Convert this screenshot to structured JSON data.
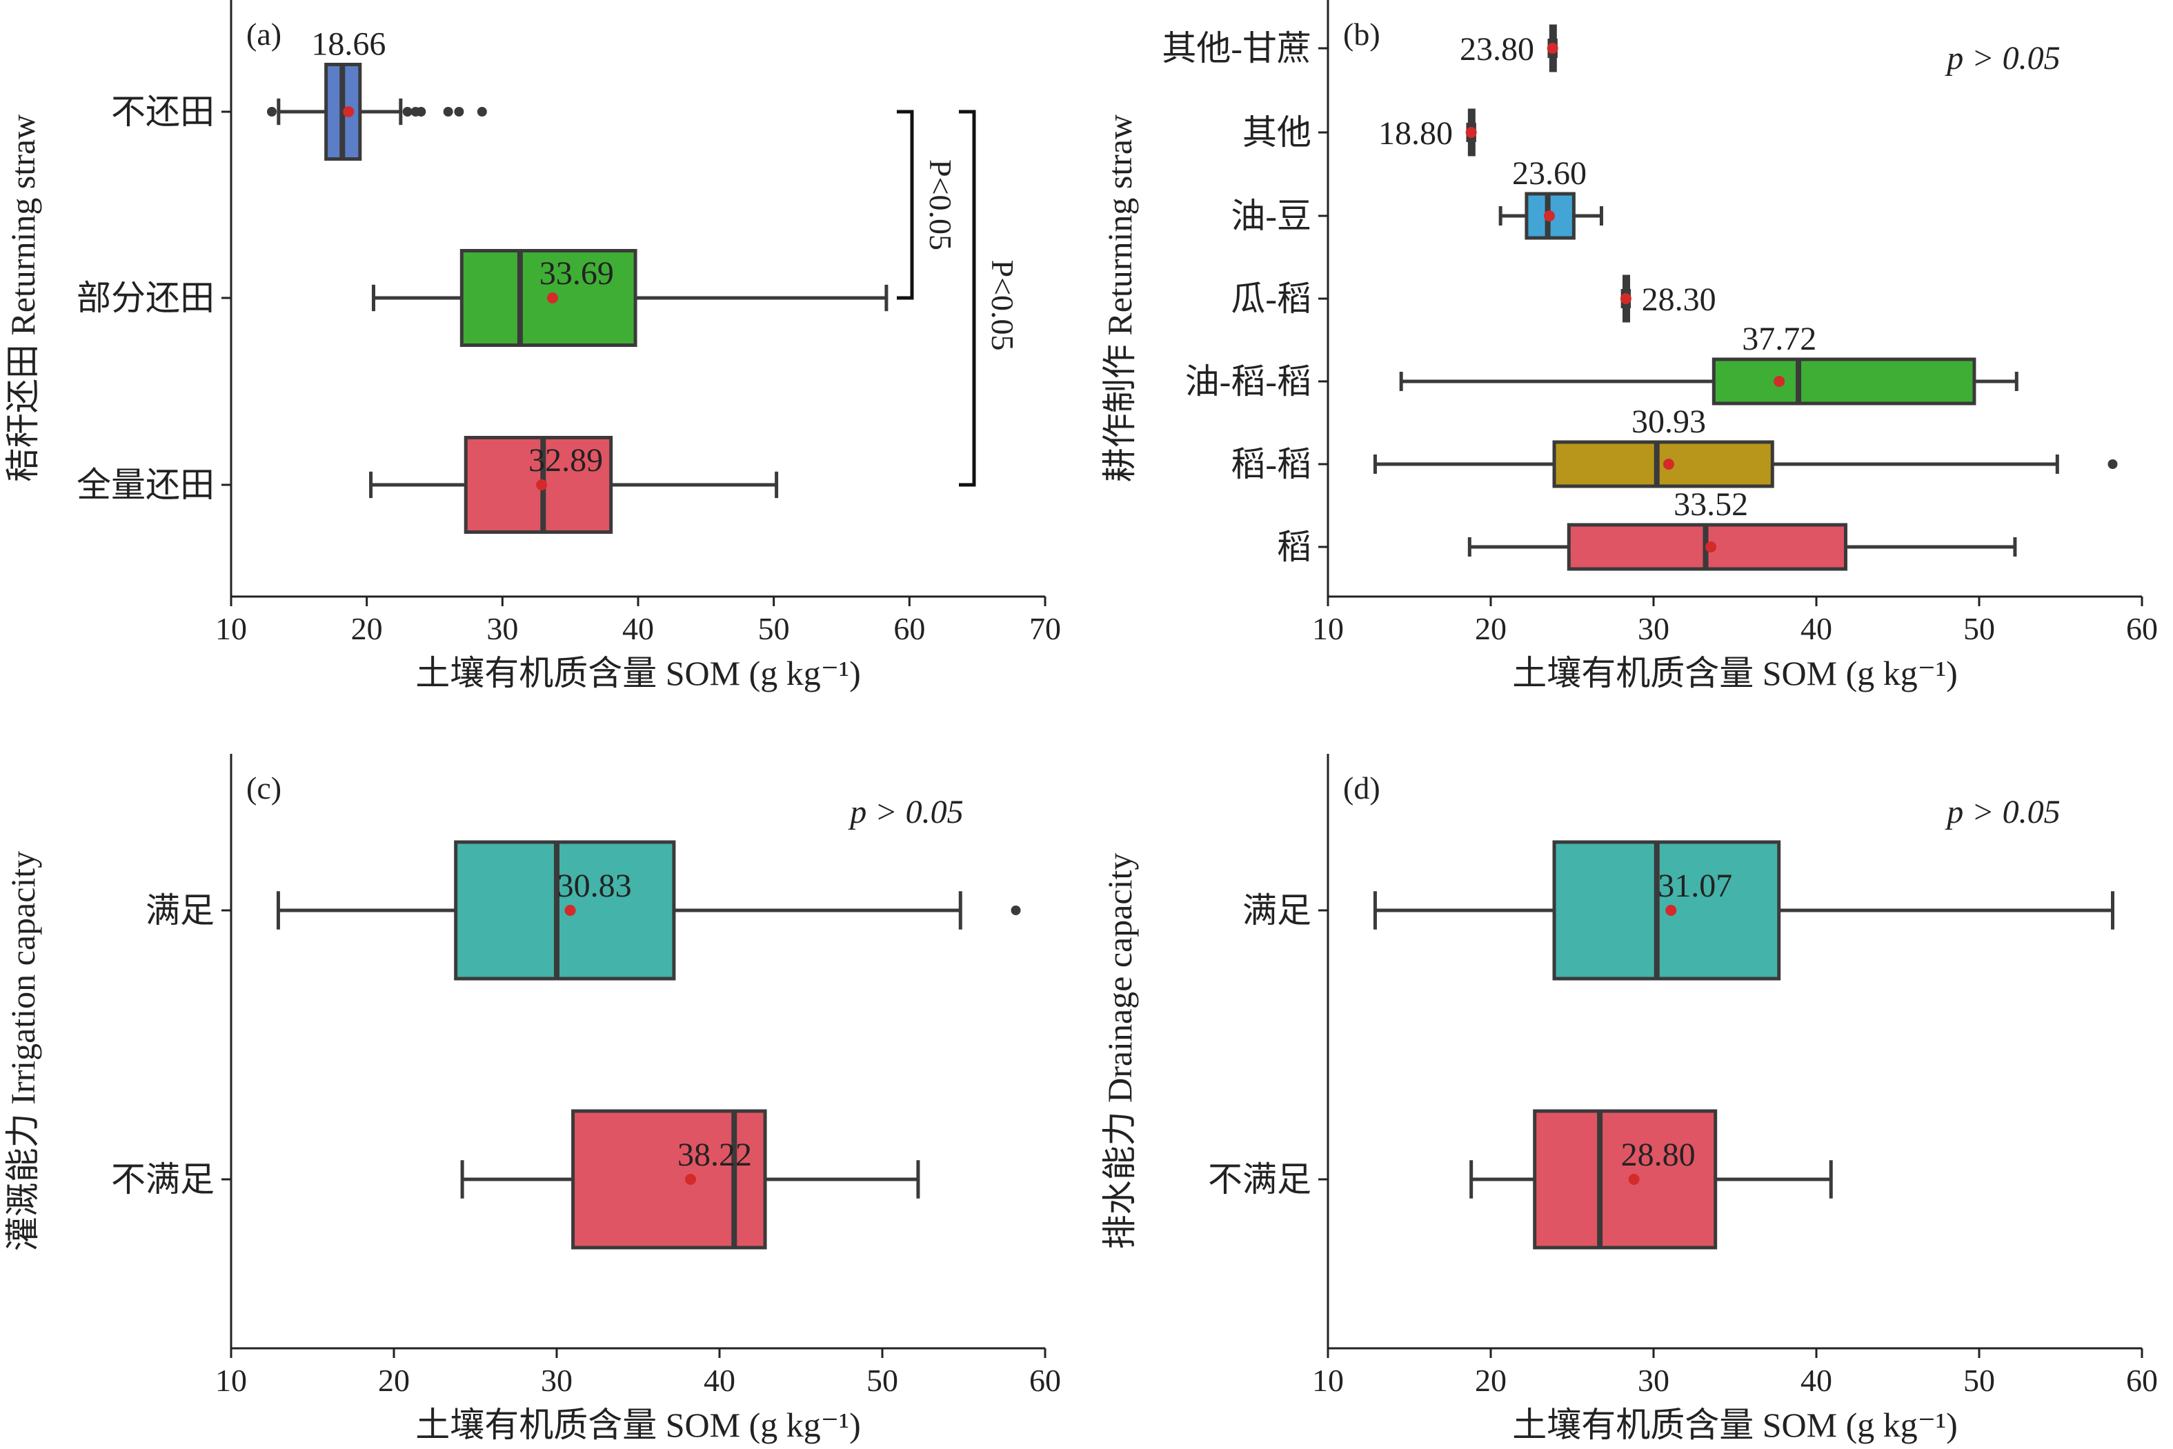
{
  "colors": {
    "blue": "#5b7ec7",
    "green": "#3fae34",
    "red": "#e05563",
    "sky": "#42a5d6",
    "olive": "#b8951b",
    "teal": "#44b3a9",
    "mean_dot": "#d42a2a"
  },
  "chart_data": [
    {
      "type": "box",
      "orientation": "horizontal",
      "panel_label": "(a)",
      "xlabel": "土壤有机质含量 SOM (g kg⁻¹)",
      "ylabel": "秸秆还田 Returning straw",
      "xlim": [
        10,
        70
      ],
      "xticks": [
        10,
        20,
        30,
        40,
        50,
        60,
        70
      ],
      "categories": [
        "不还田",
        "部分还田",
        "全量还田"
      ],
      "boxes": [
        {
          "category": "不还田",
          "color": "#5b7ec7",
          "min": 13.5,
          "q1": 17,
          "median": 18.2,
          "q3": 19.5,
          "max": 22.5,
          "mean": 18.66,
          "mean_label": "18.66",
          "outliers": [
            13.0,
            23.0,
            23.6,
            24.0,
            26.0,
            26.8,
            28.5
          ]
        },
        {
          "category": "部分还田",
          "color": "#3fae34",
          "min": 20.5,
          "q1": 27,
          "median": 31.3,
          "q3": 39.8,
          "max": 58.3,
          "mean": 33.69,
          "mean_label": "33.69",
          "outliers": []
        },
        {
          "category": "全量还田",
          "color": "#e05563",
          "min": 20.3,
          "q1": 27.3,
          "median": 33.0,
          "q3": 38.0,
          "max": 50.2,
          "mean": 32.89,
          "mean_label": "32.89",
          "outliers": []
        }
      ],
      "significance": [
        {
          "label": "P<0.05",
          "from": "不还田",
          "to": "部分还田"
        },
        {
          "label": "P<0.05",
          "from": "不还田",
          "to": "全量还田"
        }
      ]
    },
    {
      "type": "box",
      "orientation": "horizontal",
      "panel_label": "(b)",
      "xlabel": "土壤有机质含量 SOM (g kg⁻¹)",
      "ylabel": "耕作制作 Returning straw",
      "xlim": [
        10,
        60
      ],
      "xticks": [
        10,
        20,
        30,
        40,
        50,
        60
      ],
      "annotation": "p > 0.05",
      "categories": [
        "其他-甘蔗",
        "其他",
        "油-豆",
        "瓜-稻",
        "油-稻-稻",
        "稻-稻",
        "稻"
      ],
      "boxes": [
        {
          "category": "其他-甘蔗",
          "color": "#3a3a3a",
          "min": 23.6,
          "q1": 23.7,
          "median": 23.8,
          "q3": 23.9,
          "max": 24.0,
          "mean": 23.8,
          "mean_label": "23.80",
          "outliers": []
        },
        {
          "category": "其他",
          "color": "#3a3a3a",
          "min": 18.6,
          "q1": 18.7,
          "median": 18.8,
          "q3": 18.9,
          "max": 19.0,
          "mean": 18.8,
          "mean_label": "18.80",
          "outliers": []
        },
        {
          "category": "油-豆",
          "color": "#42a5d6",
          "min": 20.6,
          "q1": 22.2,
          "median": 23.5,
          "q3": 25.1,
          "max": 26.8,
          "mean": 23.6,
          "mean_label": "23.60",
          "outliers": []
        },
        {
          "category": "瓜-稻",
          "color": "#3a3a3a",
          "min": 28.1,
          "q1": 28.2,
          "median": 28.3,
          "q3": 28.4,
          "max": 28.5,
          "mean": 28.3,
          "mean_label": "28.30",
          "outliers": []
        },
        {
          "category": "油-稻-稻",
          "color": "#3fae34",
          "min": 14.5,
          "q1": 33.7,
          "median": 38.9,
          "q3": 49.7,
          "max": 52.3,
          "mean": 37.72,
          "mean_label": "37.72",
          "outliers": []
        },
        {
          "category": "稻-稻",
          "color": "#b8951b",
          "min": 12.9,
          "q1": 23.9,
          "median": 30.2,
          "q3": 37.3,
          "max": 54.8,
          "mean": 30.93,
          "mean_label": "30.93",
          "outliers": [
            58.2
          ]
        },
        {
          "category": "稻",
          "color": "#e05563",
          "min": 18.7,
          "q1": 24.8,
          "median": 33.2,
          "q3": 41.8,
          "max": 52.2,
          "mean": 33.52,
          "mean_label": "33.52",
          "outliers": []
        }
      ]
    },
    {
      "type": "box",
      "orientation": "horizontal",
      "panel_label": "(c)",
      "xlabel": "土壤有机质含量 SOM (g kg⁻¹)",
      "ylabel": "灌溉能力 Irrigation capacity",
      "xlim": [
        10,
        60
      ],
      "xticks": [
        10,
        20,
        30,
        40,
        50,
        60
      ],
      "annotation": "p > 0.05",
      "categories": [
        "满足",
        "不满足"
      ],
      "boxes": [
        {
          "category": "满足",
          "color": "#44b3a9",
          "min": 12.9,
          "q1": 23.8,
          "median": 30.0,
          "q3": 37.2,
          "max": 54.8,
          "mean": 30.83,
          "mean_label": "30.83",
          "outliers": [
            58.2
          ]
        },
        {
          "category": "不满足",
          "color": "#e05563",
          "min": 24.2,
          "q1": 31.0,
          "median": 40.9,
          "q3": 42.8,
          "max": 52.2,
          "mean": 38.22,
          "mean_label": "38.22",
          "outliers": []
        }
      ]
    },
    {
      "type": "box",
      "orientation": "horizontal",
      "panel_label": "(d)",
      "xlabel": "土壤有机质含量 SOM (g kg⁻¹)",
      "ylabel": "排水能力 Drainage capacity",
      "xlim": [
        10,
        60
      ],
      "xticks": [
        10,
        20,
        30,
        40,
        50,
        60
      ],
      "annotation": "p > 0.05",
      "categories": [
        "满足",
        "不满足"
      ],
      "boxes": [
        {
          "category": "满足",
          "color": "#44b3a9",
          "min": 12.9,
          "q1": 23.9,
          "median": 30.2,
          "q3": 37.7,
          "max": 58.2,
          "mean": 31.07,
          "mean_label": "31.07",
          "outliers": []
        },
        {
          "category": "不满足",
          "color": "#e05563",
          "min": 18.8,
          "q1": 22.7,
          "median": 26.7,
          "q3": 33.8,
          "max": 40.9,
          "mean": 28.8,
          "mean_label": "28.80",
          "outliers": []
        }
      ]
    }
  ]
}
